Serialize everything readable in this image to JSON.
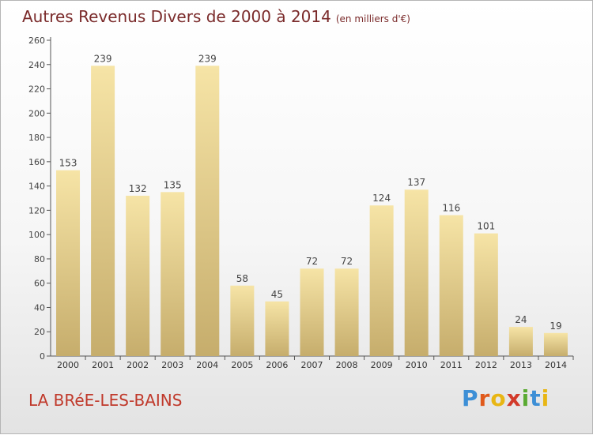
{
  "header": {
    "title": "Autres Revenus Divers de 2000 à 2014",
    "subtitle": "(en milliers d'€)"
  },
  "location": "LA BRéE-LES-BAINS",
  "logo": {
    "text": "Proxiti",
    "letter_colors": [
      "#3d8fd6",
      "#e05a1c",
      "#e8b614",
      "#d23a2a",
      "#5aaa32",
      "#3d8fd6",
      "#e8b614"
    ]
  },
  "colors": {
    "bar_top": "#f6e4a6",
    "bar_bottom": "#c6ad6c",
    "title": "#7a2a2a",
    "location": "#c0392b"
  },
  "chart_data": {
    "type": "bar",
    "categories": [
      "2000",
      "2001",
      "2002",
      "2003",
      "2004",
      "2005",
      "2006",
      "2007",
      "2008",
      "2009",
      "2010",
      "2011",
      "2012",
      "2013",
      "2014"
    ],
    "values": [
      153,
      239,
      132,
      135,
      239,
      58,
      45,
      72,
      72,
      124,
      137,
      116,
      101,
      24,
      19
    ],
    "ylim": [
      0,
      260
    ],
    "yticks": [
      0,
      20,
      40,
      60,
      80,
      100,
      120,
      140,
      160,
      180,
      200,
      220,
      240,
      260
    ],
    "grid": false,
    "data_labels": true
  }
}
